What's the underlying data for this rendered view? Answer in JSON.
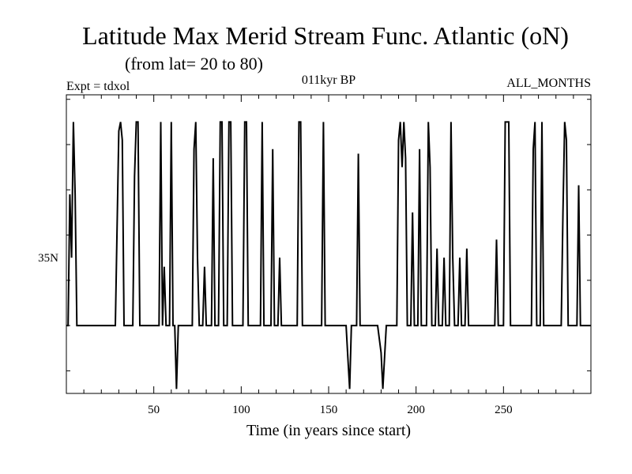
{
  "chart_data": {
    "type": "line",
    "title": "Latitude Max Merid Stream Func. Atlantic (oN)",
    "subtitle": "(from lat= 20 to 80)",
    "expt_label": "Expt = tdxol",
    "period_label": "011kyr BP",
    "months_label": "ALL_MONTHS",
    "xlabel": "Time (in years since start)",
    "ylabel": "",
    "xlim": [
      0,
      300
    ],
    "ylim": [
      20,
      53
    ],
    "x_ticks": [
      50,
      100,
      150,
      200,
      250
    ],
    "x_tick_labels": [
      "50",
      "100",
      "150",
      "200",
      "250"
    ],
    "y_ticks": [
      35
    ],
    "y_tick_labels": [
      "35N"
    ],
    "grid": false,
    "baseline": 27.5,
    "high": 50,
    "series": [
      {
        "points": [
          [
            0,
            27.5
          ],
          [
            1,
            27.5
          ],
          [
            2,
            42
          ],
          [
            3,
            35
          ],
          [
            4,
            50
          ],
          [
            5,
            42
          ],
          [
            6,
            27.5
          ],
          [
            28,
            27.5
          ],
          [
            30,
            49
          ],
          [
            31,
            50
          ],
          [
            32,
            48
          ],
          [
            33,
            27.5
          ],
          [
            38,
            27.5
          ],
          [
            39,
            44
          ],
          [
            40,
            50
          ],
          [
            41,
            50
          ],
          [
            42,
            27.5
          ],
          [
            53,
            27.5
          ],
          [
            54,
            50
          ],
          [
            55,
            27.5
          ],
          [
            56,
            34
          ],
          [
            57,
            27.5
          ],
          [
            59,
            27.5
          ],
          [
            60,
            50
          ],
          [
            61,
            27.5
          ],
          [
            62,
            27.5
          ],
          [
            63,
            20.5
          ],
          [
            64,
            27.5
          ],
          [
            72,
            27.5
          ],
          [
            73,
            47
          ],
          [
            74,
            50
          ],
          [
            75,
            35
          ],
          [
            76,
            27.5
          ],
          [
            78,
            27.5
          ],
          [
            79,
            34
          ],
          [
            80,
            27.5
          ],
          [
            83,
            27.5
          ],
          [
            84,
            46
          ],
          [
            85,
            27.5
          ],
          [
            87,
            27.5
          ],
          [
            88,
            50
          ],
          [
            89,
            50
          ],
          [
            90,
            27.5
          ],
          [
            92,
            27.5
          ],
          [
            93,
            50
          ],
          [
            94,
            50
          ],
          [
            95,
            27.5
          ],
          [
            101,
            27.5
          ],
          [
            102,
            50
          ],
          [
            103,
            50
          ],
          [
            104,
            27.5
          ],
          [
            111,
            27.5
          ],
          [
            112,
            50
          ],
          [
            113,
            27.5
          ],
          [
            117,
            27.5
          ],
          [
            118,
            47
          ],
          [
            119,
            27.5
          ],
          [
            121,
            27.5
          ],
          [
            122,
            35
          ],
          [
            123,
            27.5
          ],
          [
            132,
            27.5
          ],
          [
            133,
            50
          ],
          [
            134,
            50
          ],
          [
            135,
            27.5
          ],
          [
            146,
            27.5
          ],
          [
            147,
            50
          ],
          [
            148,
            27.5
          ],
          [
            160,
            27.5
          ],
          [
            161,
            24
          ],
          [
            162,
            20.5
          ],
          [
            163,
            27.5
          ],
          [
            166,
            27.5
          ],
          [
            167,
            46.5
          ],
          [
            168,
            27.5
          ],
          [
            178,
            27.5
          ],
          [
            180,
            24.5
          ],
          [
            181,
            20.5
          ],
          [
            182,
            24
          ],
          [
            183,
            27.5
          ],
          [
            189,
            27.5
          ],
          [
            190,
            48
          ],
          [
            191,
            50
          ],
          [
            192,
            45
          ],
          [
            193,
            50
          ],
          [
            194,
            46
          ],
          [
            195,
            27.5
          ],
          [
            197,
            27.5
          ],
          [
            198,
            40
          ],
          [
            199,
            27.5
          ],
          [
            201,
            27.5
          ],
          [
            202,
            47
          ],
          [
            203,
            27.5
          ],
          [
            206,
            27.5
          ],
          [
            207,
            50
          ],
          [
            208,
            45
          ],
          [
            209,
            27.5
          ],
          [
            211,
            27.5
          ],
          [
            212,
            36
          ],
          [
            213,
            27.5
          ],
          [
            215,
            27.5
          ],
          [
            216,
            35
          ],
          [
            217,
            27.5
          ],
          [
            219,
            27.5
          ],
          [
            220,
            50
          ],
          [
            221,
            35
          ],
          [
            222,
            27.5
          ],
          [
            224,
            27.5
          ],
          [
            225,
            35
          ],
          [
            226,
            27.5
          ],
          [
            228,
            27.5
          ],
          [
            229,
            36
          ],
          [
            230,
            27.5
          ],
          [
            245,
            27.5
          ],
          [
            246,
            37
          ],
          [
            247,
            27.5
          ],
          [
            250,
            27.5
          ],
          [
            251,
            50
          ],
          [
            252,
            50
          ],
          [
            253,
            50
          ],
          [
            254,
            27.5
          ],
          [
            266,
            27.5
          ],
          [
            267,
            47
          ],
          [
            268,
            50
          ],
          [
            269,
            27.5
          ],
          [
            271,
            27.5
          ],
          [
            272,
            50
          ],
          [
            273,
            27.5
          ],
          [
            283,
            27.5
          ],
          [
            284,
            40
          ],
          [
            285,
            50
          ],
          [
            286,
            48
          ],
          [
            287,
            27.5
          ],
          [
            292,
            27.5
          ],
          [
            293,
            43
          ],
          [
            294,
            27.5
          ],
          [
            300,
            27.5
          ]
        ]
      }
    ]
  }
}
